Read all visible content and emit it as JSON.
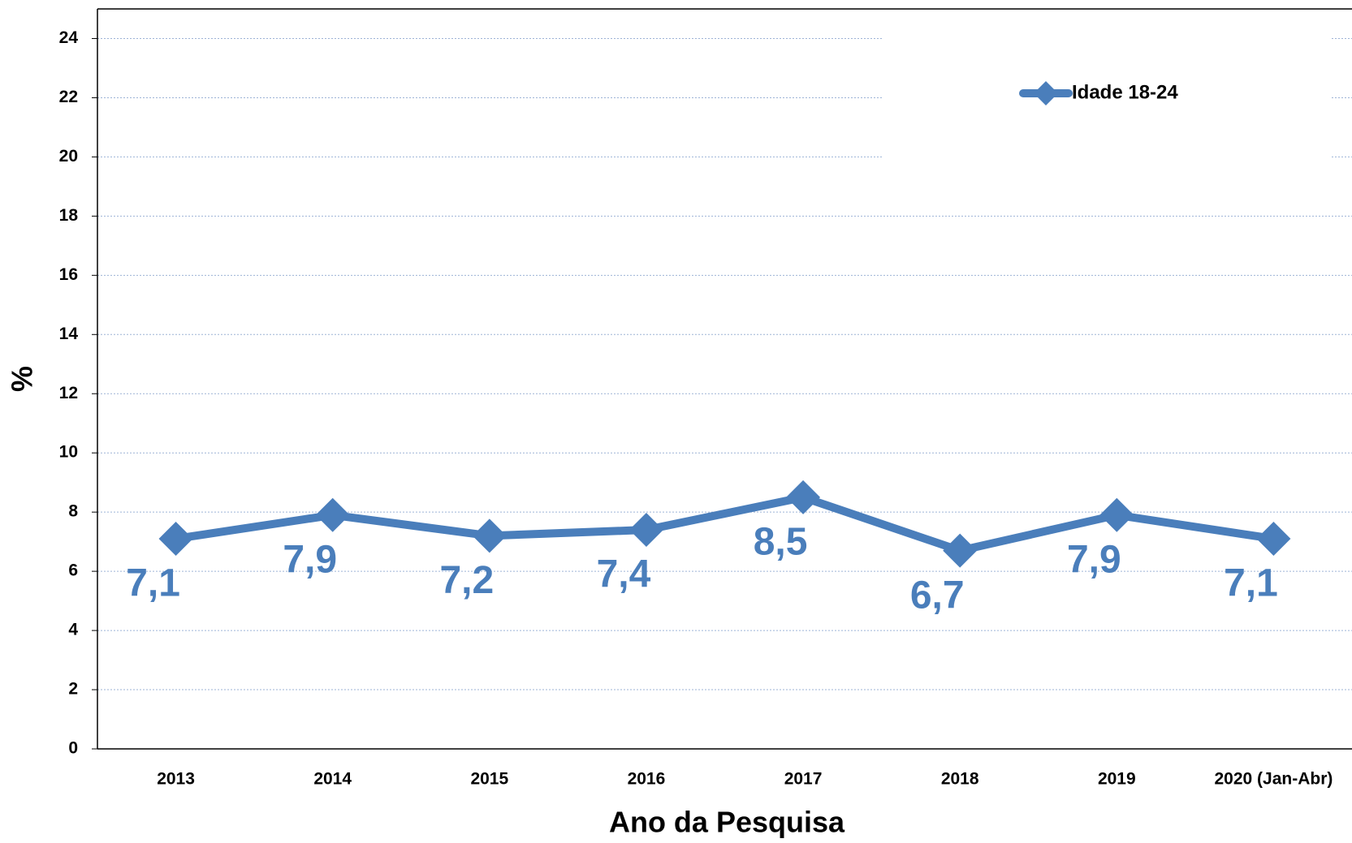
{
  "chart_data": {
    "type": "line",
    "categories": [
      "2013",
      "2014",
      "2015",
      "2016",
      "2017",
      "2018",
      "2019",
      "2020 (Jan-Abr)"
    ],
    "series": [
      {
        "name": "Idade 18-24",
        "color": "#4a7ebb",
        "values": [
          7.1,
          7.9,
          7.2,
          7.4,
          8.5,
          6.7,
          7.9,
          7.1
        ],
        "value_labels": [
          "7,1",
          "7,9",
          "7,2",
          "7,4",
          "8,5",
          "6,7",
          "7,9",
          "7,1"
        ]
      }
    ],
    "xlabel": "Ano da Pesquisa",
    "ylabel": "%",
    "ylim": [
      0,
      25
    ],
    "yticks": [
      0,
      2,
      4,
      6,
      8,
      10,
      12,
      14,
      16,
      18,
      20,
      22,
      24
    ],
    "grid": true,
    "legend": "top-right"
  }
}
